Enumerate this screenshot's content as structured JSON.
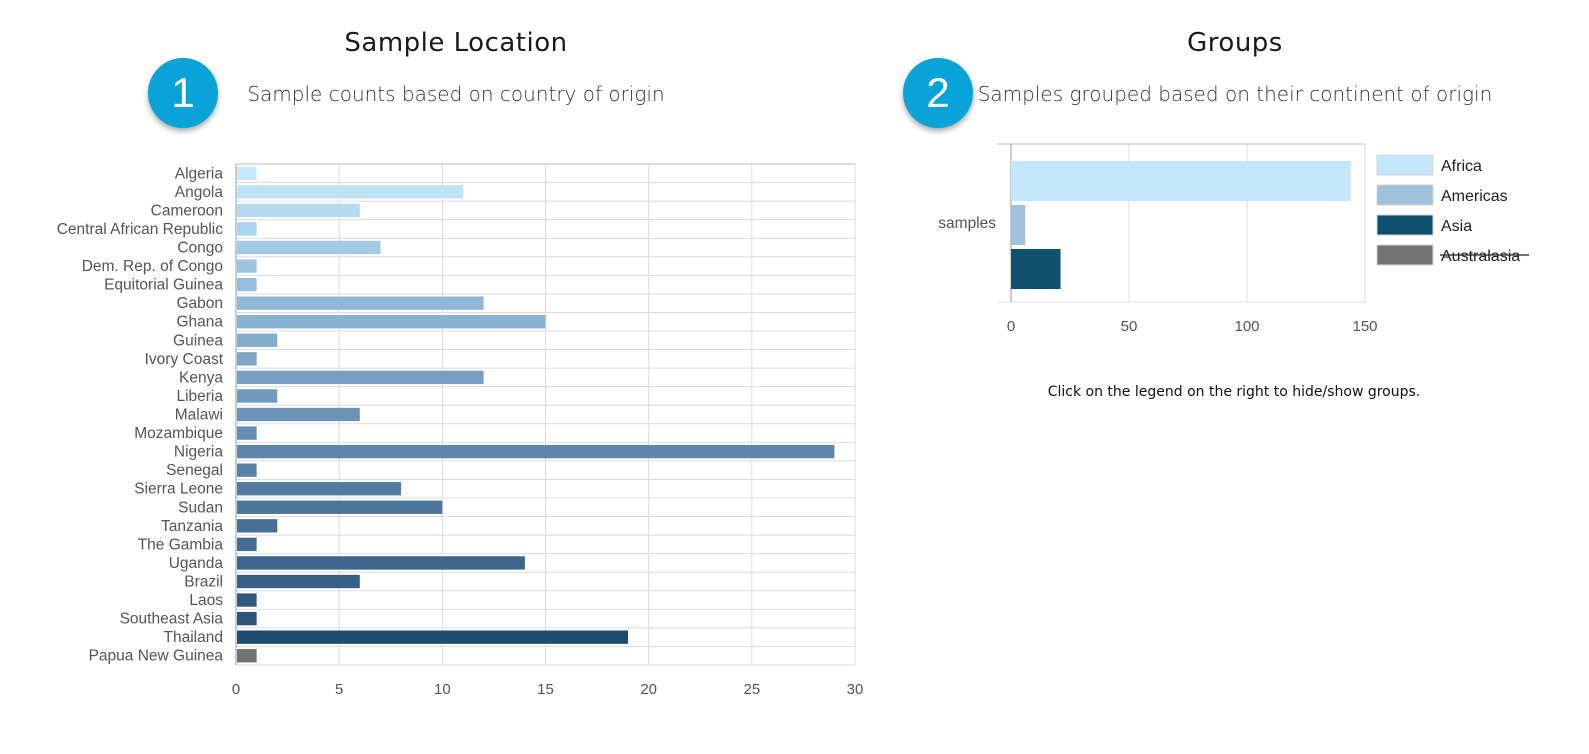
{
  "left_panel": {
    "title": "Sample Location",
    "step": "1",
    "subtitle": "Sample counts based on country of origin"
  },
  "right_panel": {
    "title": "Groups",
    "step": "2",
    "subtitle": "Samples grouped based on their continent of origin",
    "hint": "Click on the legend on the right to hide/show groups."
  },
  "chart_data": [
    {
      "type": "bar",
      "orientation": "horizontal",
      "title": "",
      "xlabel": "",
      "ylabel": "",
      "xlim": [
        0,
        30
      ],
      "xticks": [
        0,
        5,
        10,
        15,
        20,
        25,
        30
      ],
      "grid": true,
      "categories": [
        "Algeria",
        "Angola",
        "Cameroon",
        "Central African Republic",
        "Congo",
        "Dem. Rep. of Congo",
        "Equitorial Guinea",
        "Gabon",
        "Ghana",
        "Guinea",
        "Ivory Coast",
        "Kenya",
        "Liberia",
        "Malawi",
        "Mozambique",
        "Nigeria",
        "Senegal",
        "Sierra Leone",
        "Sudan",
        "Tanzania",
        "The Gambia",
        "Uganda",
        "Brazil",
        "Laos",
        "Southeast Asia",
        "Thailand",
        "Papua New Guinea"
      ],
      "values": [
        1,
        11,
        6,
        1,
        7,
        1,
        1,
        12,
        15,
        2,
        1,
        12,
        2,
        6,
        1,
        29,
        1,
        8,
        10,
        2,
        1,
        14,
        6,
        1,
        1,
        19,
        1
      ],
      "colors": [
        "#c6e8fa",
        "#bde1f5",
        "#b6dbf1",
        "#acd3ec",
        "#a4cbe6",
        "#9dc4e1",
        "#96bddc",
        "#90b7d6",
        "#89b1d1",
        "#83abcc",
        "#7ca5c6",
        "#769fc1",
        "#7099bb",
        "#6a93b6",
        "#658db1",
        "#5f87ac",
        "#5a81a6",
        "#547ca1",
        "#4e769b",
        "#497096",
        "#446b91",
        "#3e658b",
        "#385f86",
        "#325a81",
        "#2c547c",
        "#1e4d72",
        "#737373"
      ]
    },
    {
      "type": "bar",
      "orientation": "horizontal",
      "title": "",
      "xlabel": "",
      "ylabel": "",
      "categories": [
        "samples"
      ],
      "xlim": [
        0,
        150
      ],
      "xticks": [
        0,
        50,
        100,
        150
      ],
      "grid": true,
      "legend_position": "right",
      "series": [
        {
          "name": "Africa",
          "values": [
            144
          ],
          "color": "#c4e6fa",
          "visible": true
        },
        {
          "name": "Americas",
          "values": [
            6
          ],
          "color": "#9fc2da",
          "visible": true
        },
        {
          "name": "Asia",
          "values": [
            21
          ],
          "color": "#10506f",
          "visible": true
        },
        {
          "name": "Australasia",
          "values": [
            1
          ],
          "color": "#737373",
          "visible": false
        }
      ]
    }
  ]
}
